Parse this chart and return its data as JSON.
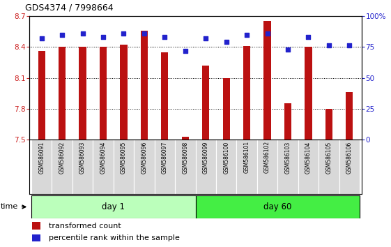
{
  "title": "GDS4374 / 7998664",
  "samples": [
    "GSM586091",
    "GSM586092",
    "GSM586093",
    "GSM586094",
    "GSM586095",
    "GSM586096",
    "GSM586097",
    "GSM586098",
    "GSM586099",
    "GSM586100",
    "GSM586101",
    "GSM586102",
    "GSM586103",
    "GSM586104",
    "GSM586105",
    "GSM586106"
  ],
  "bar_values": [
    8.36,
    8.4,
    8.4,
    8.4,
    8.42,
    8.56,
    8.35,
    7.53,
    8.22,
    8.1,
    8.41,
    8.65,
    7.85,
    8.4,
    7.8,
    7.96
  ],
  "pct_values": [
    82,
    85,
    86,
    83,
    86,
    86,
    83,
    72,
    82,
    79,
    85,
    86,
    73,
    83,
    76,
    76
  ],
  "ylim_left": [
    7.5,
    8.7
  ],
  "ylim_right": [
    0,
    100
  ],
  "yticks_left": [
    7.5,
    7.8,
    8.1,
    8.4,
    8.7
  ],
  "yticks_right": [
    0,
    25,
    50,
    75,
    100
  ],
  "bar_color": "#bb1111",
  "dot_color": "#2222cc",
  "group_colors": {
    "day 1": "#bbffbb",
    "day 60": "#44ee44"
  },
  "bar_bottom": 7.5,
  "bar_width": 0.35,
  "label_color_left": "#cc2222",
  "label_color_right": "#2222cc",
  "legend_items": [
    "transformed count",
    "percentile rank within the sample"
  ],
  "n_day1": 8,
  "n_day60": 8,
  "tick_labelsize": 7.5
}
